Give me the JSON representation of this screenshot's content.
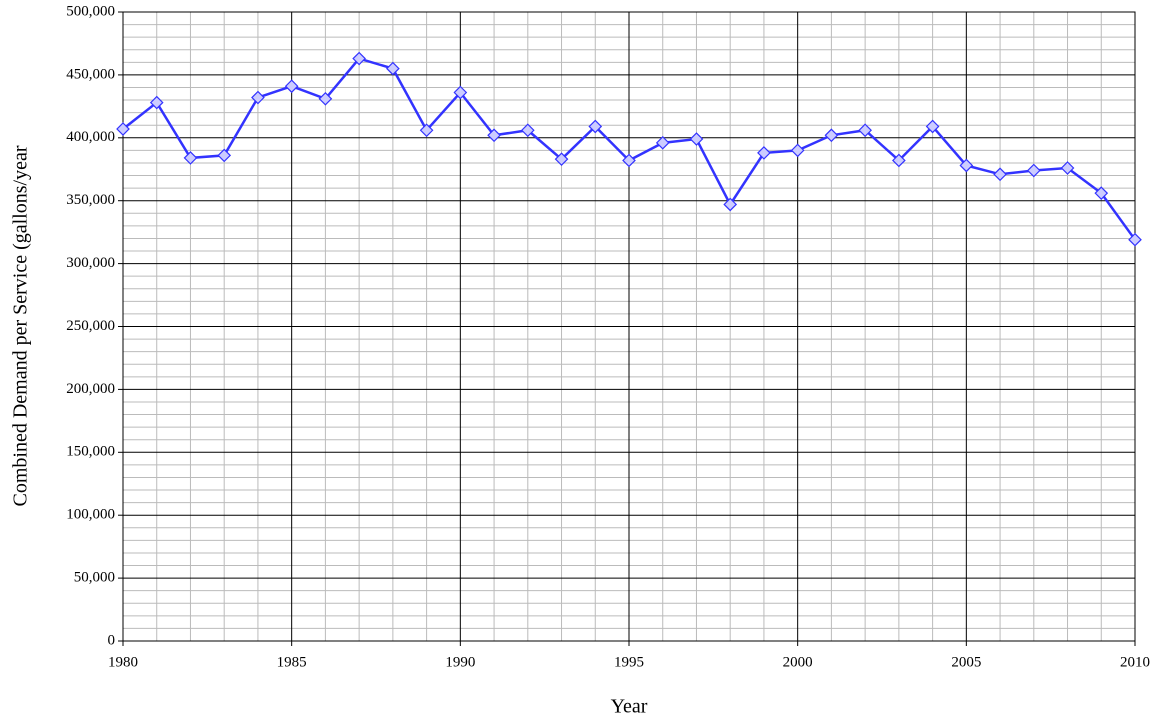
{
  "chart_data": {
    "type": "line",
    "x_label": "Year",
    "y_label": "Combined Demand per Service (gallons/year",
    "x": [
      1980,
      1981,
      1982,
      1983,
      1984,
      1985,
      1986,
      1987,
      1988,
      1989,
      1990,
      1991,
      1992,
      1993,
      1994,
      1995,
      1996,
      1997,
      1998,
      1999,
      2000,
      2001,
      2002,
      2003,
      2004,
      2005,
      2006,
      2007,
      2008,
      2009,
      2010
    ],
    "series": [
      {
        "color": "#3333ff",
        "marker_fill": "#ccccff",
        "values": [
          407000,
          428000,
          384000,
          386000,
          432000,
          441000,
          431000,
          463000,
          455000,
          406000,
          436000,
          402000,
          406000,
          383000,
          409000,
          382000,
          396000,
          399000,
          347000,
          388000,
          390000,
          402000,
          406000,
          382000,
          409000,
          378000,
          371000,
          374000,
          376000,
          356000,
          319000
        ]
      }
    ],
    "xlim": [
      1980,
      2010
    ],
    "xticks": [
      1980,
      1985,
      1990,
      1995,
      2000,
      2005,
      2010
    ],
    "ylim": [
      0,
      500000
    ],
    "yticks": [
      0,
      {
        "value": 50000,
        "label": "50,000"
      },
      {
        "value": 100000,
        "label": "100,000"
      },
      {
        "value": 150000,
        "label": "150,000"
      },
      {
        "value": 200000,
        "label": "200,000"
      },
      {
        "value": 250000,
        "label": "250,000"
      },
      {
        "value": 300000,
        "label": "300,000"
      },
      {
        "value": 350000,
        "label": "350,000"
      },
      {
        "value": 400000,
        "label": "400,000"
      },
      {
        "value": 450000,
        "label": "450,000"
      },
      {
        "value": 500000,
        "label": "500,000"
      }
    ],
    "grid": true,
    "minor_divisions": 5
  }
}
